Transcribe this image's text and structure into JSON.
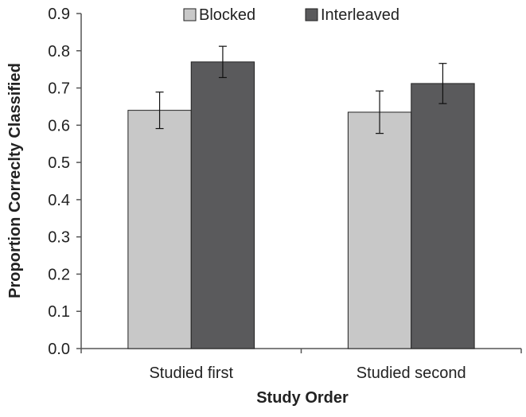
{
  "chart_data": {
    "type": "bar",
    "title": "",
    "xlabel": "Study Order",
    "ylabel": "Proportion Correclty Classified",
    "categories": [
      "Studied first",
      "Studied second"
    ],
    "series": [
      {
        "name": "Blocked",
        "values": [
          0.64,
          0.635
        ],
        "error": [
          0.049,
          0.057
        ],
        "color": "#c8c8c8"
      },
      {
        "name": "Interleaved",
        "values": [
          0.77,
          0.712
        ],
        "error": [
          0.042,
          0.054
        ],
        "color": "#5a5a5c"
      }
    ],
    "ylim": [
      0,
      0.9
    ],
    "yticks": [
      "0.0",
      "0.1",
      "0.2",
      "0.3",
      "0.4",
      "0.5",
      "0.6",
      "0.7",
      "0.8",
      "0.9"
    ],
    "grid": false,
    "legend_position": "top"
  }
}
